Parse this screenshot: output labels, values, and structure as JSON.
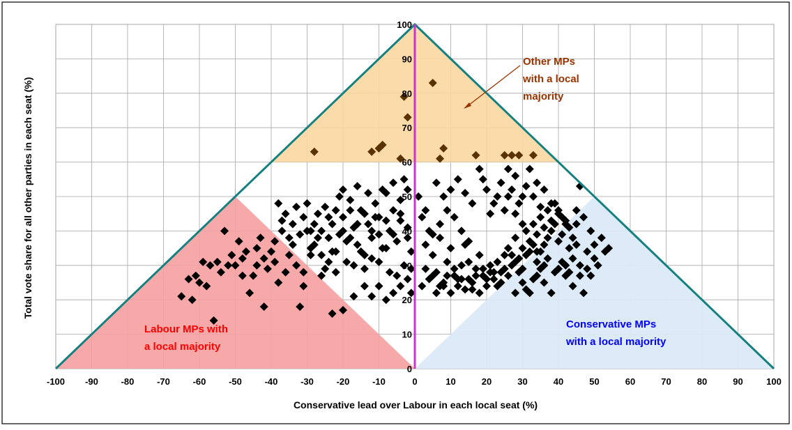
{
  "colors": {
    "border": "#000000",
    "grid": "#a6a6a6",
    "triangle": "#148080",
    "zero_line": "#cc33cc",
    "other_fill": "#fad7a0",
    "labour_fill": "#f6a0a0",
    "con_fill": "#dbe9f7",
    "marker": "#000000",
    "other_marker": "#5a3200",
    "labour_text": "#ff0000",
    "con_text": "#0000ff",
    "other_text": "#993300"
  },
  "chart_data": {
    "type": "scatter",
    "title": "",
    "xlabel": "Conservative lead over Labour in each local seat (%)",
    "ylabel": "Total vote share for all other parties in each seat (%)",
    "xlim": [
      -100,
      100
    ],
    "ylim": [
      0,
      100
    ],
    "grid": true,
    "x_ticks": [
      "-100",
      "-90",
      "-80",
      "-70",
      "-60",
      "-50",
      "-40",
      "-30",
      "-20",
      "-10",
      "0",
      "10",
      "20",
      "30",
      "40",
      "50",
      "60",
      "70",
      "80",
      "90",
      "100"
    ],
    "y_ticks": [
      "0",
      "10",
      "20",
      "30",
      "40",
      "50",
      "60",
      "70",
      "80",
      "90",
      "100"
    ],
    "regions": {
      "other": "Other MPs with a local majority",
      "labour": "Labour MPs with a local majority",
      "conservative": "Conservative MPs with a local majority"
    },
    "annotations": {
      "other": [
        "Other MPs",
        "with a local",
        "majority"
      ],
      "labour": [
        "Labour MPs with",
        "a local majority"
      ],
      "conservative": [
        "Conservative MPs",
        "with a local majority"
      ]
    },
    "other_points": [
      [
        -28,
        63
      ],
      [
        -12,
        63
      ],
      [
        -10,
        64
      ],
      [
        -9,
        65
      ],
      [
        -4,
        61
      ],
      [
        -3,
        79
      ],
      [
        -2,
        73
      ],
      [
        5,
        83
      ],
      [
        7,
        61
      ],
      [
        8,
        64
      ],
      [
        17,
        62
      ],
      [
        25,
        62
      ],
      [
        27,
        62
      ],
      [
        29,
        62
      ],
      [
        33,
        62
      ]
    ],
    "points": [
      [
        -65,
        21
      ],
      [
        -63,
        26
      ],
      [
        -62,
        20
      ],
      [
        -60,
        25
      ],
      [
        -58,
        24
      ],
      [
        -57,
        30
      ],
      [
        -55,
        31
      ],
      [
        -54,
        28
      ],
      [
        -52,
        30
      ],
      [
        -51,
        33
      ],
      [
        -50,
        30
      ],
      [
        -49,
        37
      ],
      [
        -48,
        32
      ],
      [
        -47,
        34
      ],
      [
        -46,
        22
      ],
      [
        -45,
        27
      ],
      [
        -44,
        35
      ],
      [
        -43,
        38
      ],
      [
        -42,
        18
      ],
      [
        -41,
        29
      ],
      [
        -40,
        34
      ],
      [
        -39,
        31
      ],
      [
        -38,
        25
      ],
      [
        -37,
        40
      ],
      [
        -36,
        28
      ],
      [
        -35,
        33
      ],
      [
        -34,
        36
      ],
      [
        -33,
        30
      ],
      [
        -32,
        18
      ],
      [
        -31,
        24
      ],
      [
        -56,
        14
      ],
      [
        -53,
        40
      ],
      [
        -59,
        31
      ],
      [
        -61,
        27
      ],
      [
        -48,
        27
      ],
      [
        -44,
        30
      ],
      [
        -42,
        32
      ],
      [
        -39,
        37
      ],
      [
        -38,
        48
      ],
      [
        -36,
        45
      ],
      [
        -34,
        42
      ],
      [
        -33,
        47
      ],
      [
        -31,
        44
      ],
      [
        -30,
        48
      ],
      [
        -29,
        40
      ],
      [
        -28,
        36
      ],
      [
        -27,
        45
      ],
      [
        -26,
        33
      ],
      [
        -25,
        47
      ],
      [
        -24,
        38
      ],
      [
        -23,
        42
      ],
      [
        -22,
        34
      ],
      [
        -21,
        50
      ],
      [
        -20,
        44
      ],
      [
        -19,
        37
      ],
      [
        -18,
        49
      ],
      [
        -17,
        41
      ],
      [
        -16,
        36
      ],
      [
        -15,
        46
      ],
      [
        -14,
        33
      ],
      [
        -13,
        42
      ],
      [
        -12,
        38
      ],
      [
        -11,
        48
      ],
      [
        -10,
        44
      ],
      [
        -9,
        35
      ],
      [
        -8,
        51
      ],
      [
        -7,
        40
      ],
      [
        -6,
        46
      ],
      [
        -5,
        37
      ],
      [
        -4,
        43
      ],
      [
        -3,
        55
      ],
      [
        -2,
        41
      ],
      [
        -1,
        34
      ],
      [
        -37,
        43
      ],
      [
        -35,
        38
      ],
      [
        -32,
        39
      ],
      [
        -29,
        33
      ],
      [
        -26,
        27
      ],
      [
        -24,
        31
      ],
      [
        -22,
        28
      ],
      [
        -20,
        52
      ],
      [
        -18,
        46
      ],
      [
        -16,
        53
      ],
      [
        -13,
        51
      ],
      [
        -11,
        44
      ],
      [
        -9,
        52
      ],
      [
        -6,
        54
      ],
      [
        -4,
        49
      ],
      [
        -2,
        52
      ],
      [
        -31,
        28
      ],
      [
        -29,
        35
      ],
      [
        -27,
        38
      ],
      [
        -25,
        29
      ],
      [
        -23,
        34
      ],
      [
        -21,
        39
      ],
      [
        -19,
        31
      ],
      [
        -17,
        30
      ],
      [
        -15,
        34
      ],
      [
        -14,
        29
      ],
      [
        -12,
        32
      ],
      [
        -10,
        31
      ],
      [
        -8,
        35
      ],
      [
        -7,
        28
      ],
      [
        -5,
        27
      ],
      [
        -3,
        30
      ],
      [
        -1,
        29
      ],
      [
        -23,
        16
      ],
      [
        -20,
        17
      ],
      [
        -17,
        21
      ],
      [
        -14,
        24
      ],
      [
        -12,
        21
      ],
      [
        -10,
        24
      ],
      [
        -8,
        20
      ],
      [
        -6,
        22
      ],
      [
        -4,
        24
      ],
      [
        -2,
        26
      ],
      [
        -1,
        22
      ],
      [
        -30,
        40
      ],
      [
        -28,
        42
      ],
      [
        -26,
        40
      ],
      [
        -24,
        44
      ],
      [
        -22,
        46
      ],
      [
        -20,
        40
      ],
      [
        -18,
        38
      ],
      [
        -16,
        42
      ],
      [
        -14,
        45
      ],
      [
        -12,
        40
      ],
      [
        -10,
        39
      ],
      [
        -8,
        43
      ],
      [
        -6,
        39
      ],
      [
        -4,
        45
      ],
      [
        -2,
        38
      ],
      [
        1,
        50
      ],
      [
        2,
        44
      ],
      [
        3,
        36
      ],
      [
        4,
        40
      ],
      [
        5,
        33
      ],
      [
        6,
        28
      ],
      [
        7,
        38
      ],
      [
        8,
        24
      ],
      [
        9,
        31
      ],
      [
        10,
        35
      ],
      [
        11,
        27
      ],
      [
        12,
        24
      ],
      [
        13,
        30
      ],
      [
        14,
        36
      ],
      [
        15,
        26
      ],
      [
        16,
        23
      ],
      [
        17,
        29
      ],
      [
        18,
        33
      ],
      [
        19,
        27
      ],
      [
        20,
        24
      ],
      [
        21,
        30
      ],
      [
        22,
        26
      ],
      [
        23,
        31
      ],
      [
        24,
        28
      ],
      [
        25,
        33
      ],
      [
        26,
        35
      ],
      [
        27,
        30
      ],
      [
        28,
        38
      ],
      [
        29,
        32
      ],
      [
        30,
        35
      ],
      [
        31,
        40
      ],
      [
        32,
        37
      ],
      [
        33,
        42
      ],
      [
        34,
        39
      ],
      [
        35,
        44
      ],
      [
        36,
        41
      ],
      [
        37,
        46
      ],
      [
        38,
        43
      ],
      [
        39,
        48
      ],
      [
        40,
        45
      ],
      [
        41,
        39
      ],
      [
        42,
        43
      ],
      [
        43,
        41
      ],
      [
        44,
        38
      ],
      [
        45,
        46
      ],
      [
        2,
        24
      ],
      [
        4,
        26
      ],
      [
        6,
        22
      ],
      [
        8,
        25
      ],
      [
        10,
        22
      ],
      [
        12,
        26
      ],
      [
        14,
        23
      ],
      [
        16,
        25
      ],
      [
        18,
        22
      ],
      [
        20,
        26
      ],
      [
        22,
        28
      ],
      [
        24,
        25
      ],
      [
        26,
        27
      ],
      [
        28,
        31
      ],
      [
        30,
        29
      ],
      [
        32,
        34
      ],
      [
        34,
        31
      ],
      [
        36,
        36
      ],
      [
        38,
        40
      ],
      [
        40,
        37
      ],
      [
        3,
        29
      ],
      [
        5,
        27
      ],
      [
        7,
        24
      ],
      [
        9,
        27
      ],
      [
        11,
        29
      ],
      [
        13,
        26
      ],
      [
        15,
        31
      ],
      [
        17,
        27
      ],
      [
        19,
        29
      ],
      [
        21,
        28
      ],
      [
        23,
        24
      ],
      [
        25,
        29
      ],
      [
        27,
        33
      ],
      [
        29,
        28
      ],
      [
        31,
        33
      ],
      [
        33,
        36
      ],
      [
        35,
        34
      ],
      [
        37,
        38
      ],
      [
        39,
        42
      ],
      [
        41,
        44
      ],
      [
        18,
        58
      ],
      [
        20,
        52
      ],
      [
        22,
        48
      ],
      [
        24,
        54
      ],
      [
        26,
        58
      ],
      [
        28,
        56
      ],
      [
        30,
        50
      ],
      [
        32,
        58
      ],
      [
        34,
        54
      ],
      [
        36,
        52
      ],
      [
        38,
        48
      ],
      [
        40,
        46
      ],
      [
        42,
        42
      ],
      [
        21,
        45
      ],
      [
        23,
        50
      ],
      [
        25,
        46
      ],
      [
        27,
        52
      ],
      [
        29,
        48
      ],
      [
        31,
        53
      ],
      [
        33,
        50
      ],
      [
        35,
        47
      ],
      [
        19,
        55
      ],
      [
        26,
        50
      ],
      [
        28,
        45
      ],
      [
        30,
        42
      ],
      [
        12,
        55
      ],
      [
        14,
        51
      ],
      [
        16,
        48
      ],
      [
        10,
        52
      ],
      [
        8,
        50
      ],
      [
        6,
        54
      ],
      [
        15,
        37
      ],
      [
        13,
        40
      ],
      [
        11,
        44
      ],
      [
        9,
        46
      ],
      [
        7,
        42
      ],
      [
        5,
        39
      ],
      [
        3,
        46
      ],
      [
        46,
        53
      ],
      [
        28,
        22
      ],
      [
        30,
        25
      ],
      [
        32,
        22
      ],
      [
        34,
        27
      ],
      [
        36,
        25
      ],
      [
        38,
        22
      ],
      [
        40,
        29
      ],
      [
        42,
        27
      ],
      [
        44,
        32
      ],
      [
        46,
        30
      ],
      [
        48,
        34
      ],
      [
        50,
        32
      ],
      [
        52,
        38
      ],
      [
        54,
        35
      ],
      [
        49,
        40
      ],
      [
        47,
        44
      ],
      [
        45,
        42
      ],
      [
        43,
        35
      ],
      [
        41,
        31
      ],
      [
        39,
        28
      ],
      [
        37,
        32
      ],
      [
        35,
        29
      ],
      [
        33,
        26
      ],
      [
        31,
        23
      ],
      [
        44,
        24
      ],
      [
        46,
        27
      ],
      [
        48,
        29
      ],
      [
        50,
        36
      ],
      [
        47,
        22
      ],
      [
        51,
        30
      ],
      [
        53,
        34
      ],
      [
        45,
        36
      ],
      [
        42,
        30
      ],
      [
        49,
        27
      ],
      [
        43,
        28
      ],
      [
        36,
        30
      ],
      [
        34,
        34
      ]
    ]
  }
}
